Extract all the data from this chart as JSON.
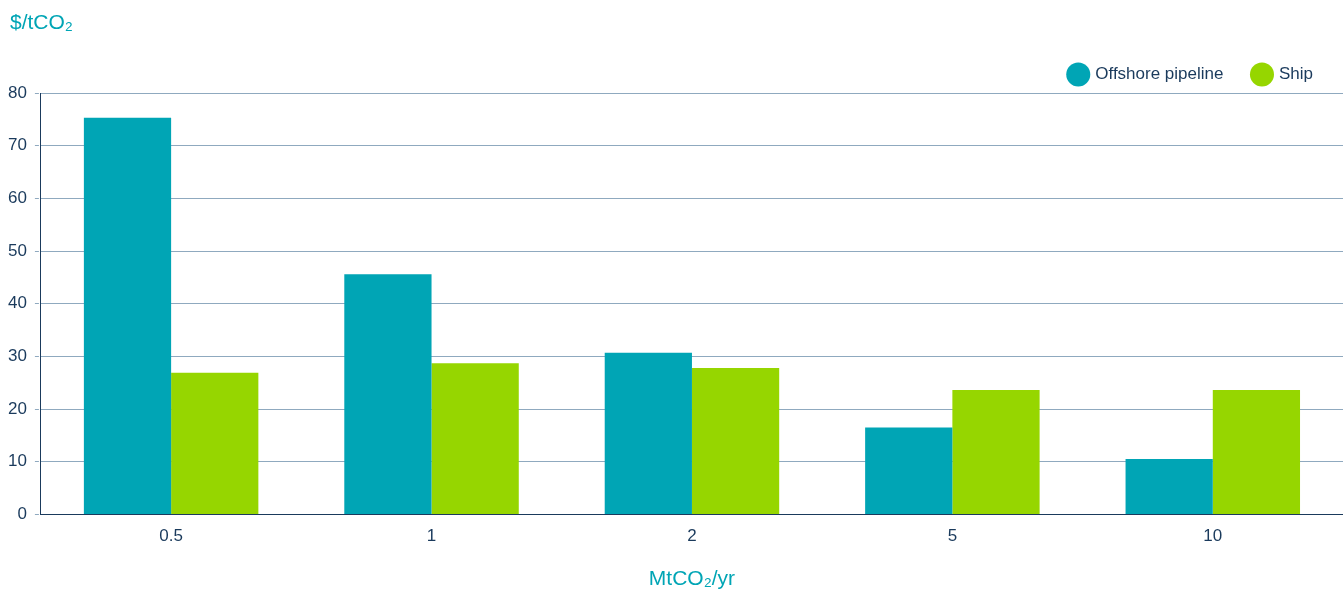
{
  "chart_data": {
    "type": "bar",
    "ylabel": "$/tCO₂",
    "xlabel": "MtCO₂/yr",
    "categories": [
      "0.5",
      "1",
      "2",
      "5",
      "10"
    ],
    "series": [
      {
        "name": "Offshore pipeline",
        "color": "#00a5b5",
        "values": [
          75.3,
          45.6,
          30.7,
          16.5,
          10.5
        ]
      },
      {
        "name": "Ship",
        "color": "#96d600",
        "values": [
          26.9,
          28.7,
          27.8,
          23.6,
          23.6
        ]
      }
    ],
    "ylim": [
      0,
      80
    ],
    "yticks": [
      0,
      10,
      20,
      30,
      40,
      50,
      60,
      70,
      80
    ],
    "grid": "y",
    "legend": "top right"
  }
}
